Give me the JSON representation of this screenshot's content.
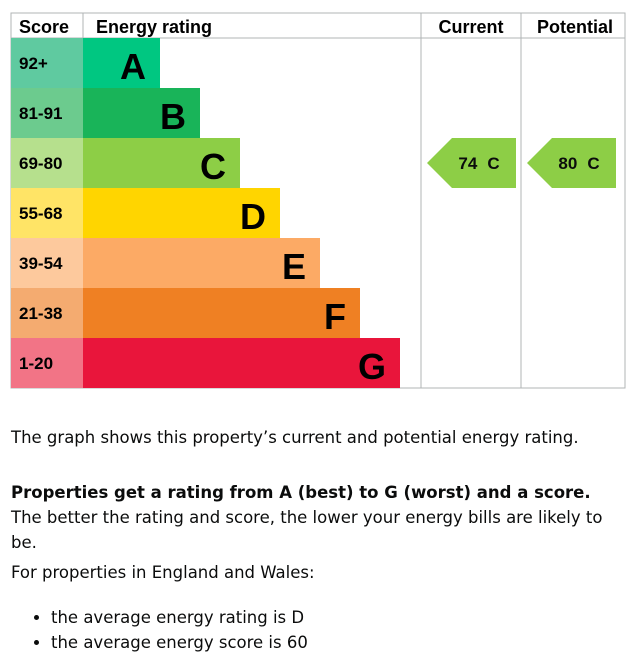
{
  "header": {
    "score": "Score",
    "rating": "Energy rating",
    "current": "Current",
    "potential": "Potential"
  },
  "bands": [
    {
      "range": "92+",
      "letter": "A",
      "color": "#00c781",
      "light": "#5fcaa0"
    },
    {
      "range": "81-91",
      "letter": "B",
      "color": "#19b459",
      "light": "#6ccb8e"
    },
    {
      "range": "69-80",
      "letter": "C",
      "color": "#8dce46",
      "light": "#b6e08d"
    },
    {
      "range": "55-68",
      "letter": "D",
      "color": "#ffd500",
      "light": "#ffe466"
    },
    {
      "range": "39-54",
      "letter": "E",
      "color": "#fcaa65",
      "light": "#fdc99d"
    },
    {
      "range": "21-38",
      "letter": "F",
      "color": "#ef8023",
      "light": "#f4ab70"
    },
    {
      "range": "1-20",
      "letter": "G",
      "color": "#e9153b",
      "light": "#f27486"
    }
  ],
  "current": {
    "score": 74,
    "rating": "C"
  },
  "potential": {
    "score": 80,
    "rating": "C"
  },
  "text": {
    "intro": "The graph shows this property’s current and potential energy rating.",
    "bold": "Properties get a rating from A (best) to G (worst) and a score.",
    "rest": " The better the rating and score, the lower your energy bills are likely to be.",
    "region": "For properties in England and Wales:",
    "bullets": [
      "the average energy rating is D",
      "the average energy score is 60"
    ]
  }
}
